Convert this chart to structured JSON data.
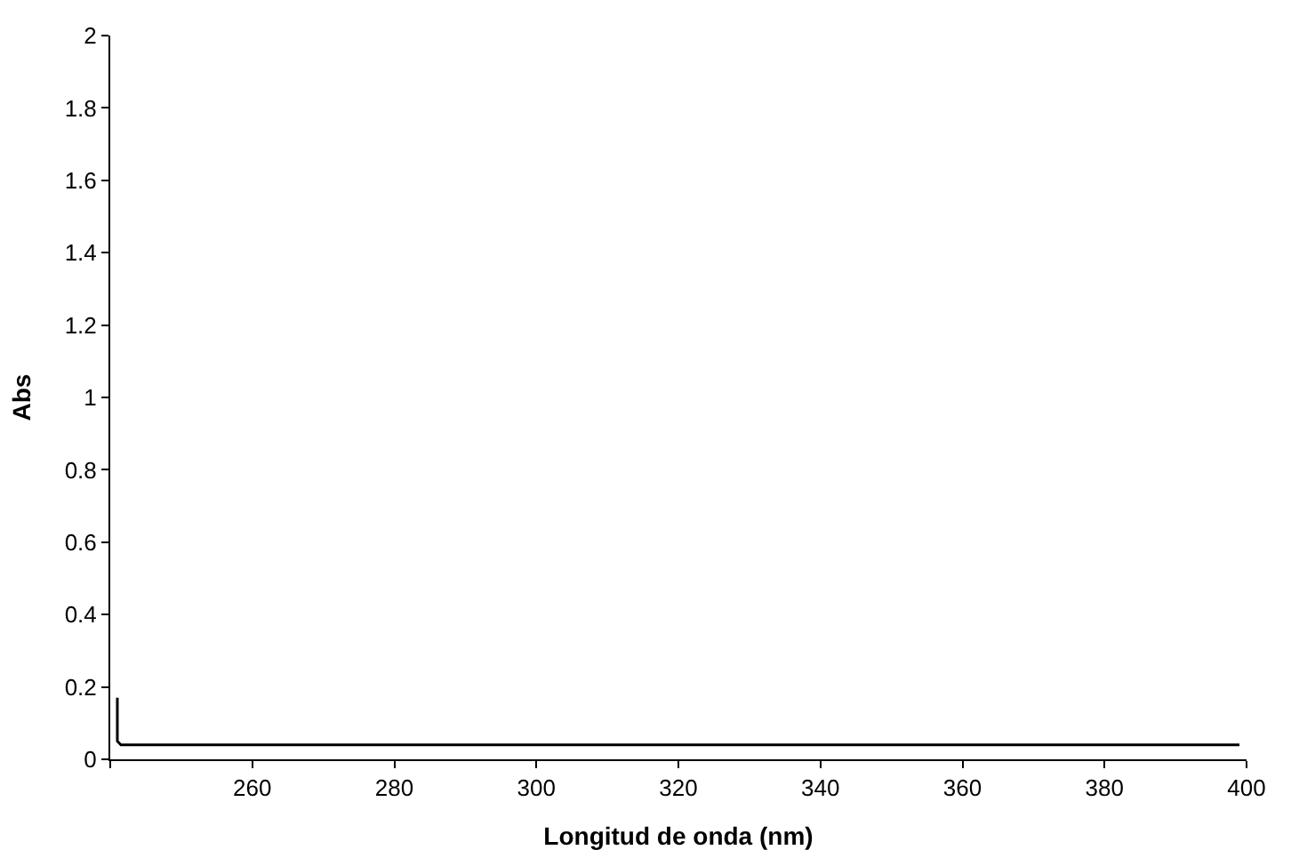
{
  "chart_data": {
    "type": "line",
    "xlabel": "Longitud de onda (nm)",
    "ylabel": "Abs",
    "x": [
      241,
      241,
      241.5,
      399
    ],
    "series": [
      {
        "color": "#000000",
        "values": [
          0.17,
          0.05,
          0.04,
          0.04
        ]
      }
    ],
    "xlim": [
      240,
      400
    ],
    "xticks": [
      {
        "value": 240,
        "label": null
      },
      260,
      280,
      300,
      320,
      340,
      360,
      380,
      400
    ],
    "ylim": [
      0,
      2
    ],
    "yticks": [
      0,
      0.2,
      0.4,
      0.6,
      0.8,
      1,
      1.2,
      1.4,
      1.6,
      1.8,
      2
    ],
    "marker": "none",
    "line_style": "solid"
  }
}
